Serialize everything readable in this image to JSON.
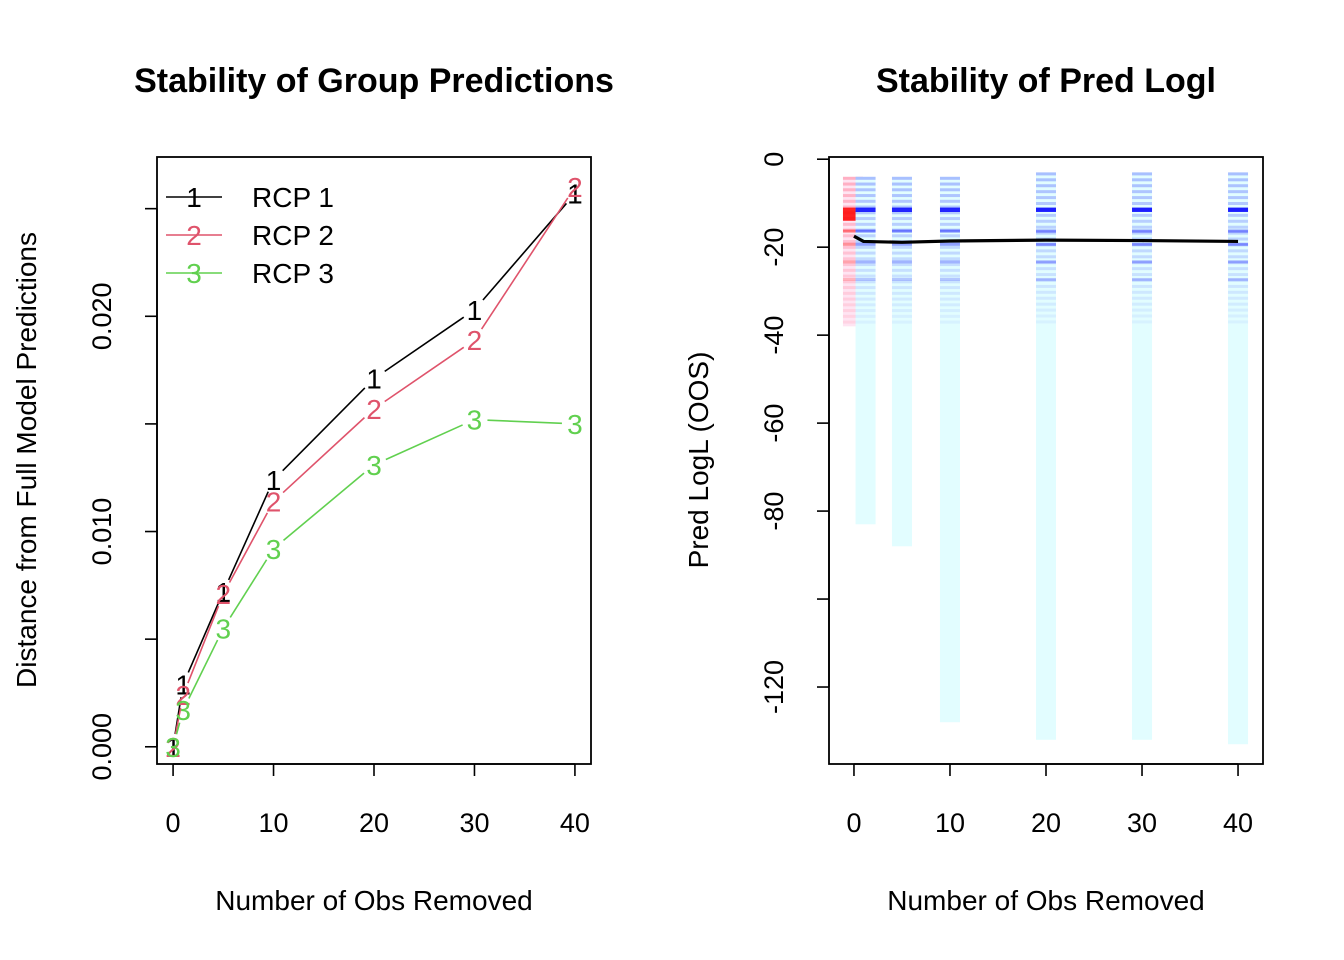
{
  "chart_data": [
    {
      "type": "line",
      "title": "Stability of Group Predictions",
      "xlabel": "Number of Obs Removed",
      "ylabel": "Distance from Full Model Predictions",
      "xlim": [
        -1.6,
        41.6
      ],
      "ylim": [
        -0.0008,
        0.0274
      ],
      "x_ticks": [
        "0",
        "10",
        "20",
        "30",
        "40"
      ],
      "y_ticks": [
        "0.000",
        "0.010",
        "0.020"
      ],
      "x": [
        0,
        1,
        5,
        10,
        20,
        30,
        40
      ],
      "legend": {
        "position": "top-left"
      },
      "series": [
        {
          "name": "RCP 1",
          "marker": "1",
          "color": "#000000",
          "values": [
            0,
            0.0029,
            0.0072,
            0.0124,
            0.0171,
            0.0203,
            0.0257
          ]
        },
        {
          "name": "RCP 2",
          "marker": "2",
          "color": "#df536b",
          "values": [
            0,
            0.0024,
            0.0071,
            0.0114,
            0.0157,
            0.0189,
            0.026
          ]
        },
        {
          "name": "RCP 3",
          "marker": "3",
          "color": "#61d04f",
          "values": [
            0,
            0.0017,
            0.0055,
            0.0092,
            0.0131,
            0.0152,
            0.015
          ]
        }
      ],
      "grid": false
    },
    {
      "type": "line",
      "title": "Stability of Pred Logl",
      "xlabel": "Number of Obs Removed",
      "ylabel": "Pred LogL (OOS)",
      "xlim": [
        -2.6,
        42.6
      ],
      "ylim": [
        -137.5,
        0.5
      ],
      "x_ticks": [
        "0",
        "10",
        "20",
        "30",
        "40"
      ],
      "y_ticks": [
        "0",
        "-20",
        "-40",
        "-60",
        "-80",
        "-120"
      ],
      "y_tick_values": [
        0,
        -20,
        -40,
        -60,
        -80,
        -100,
        -120
      ],
      "density_strips": [
        {
          "x": 0,
          "color": "#ff0000",
          "top": -4,
          "bottom": -38,
          "dense_top": -11,
          "dense_bottom": -14
        },
        {
          "x": 1,
          "color": "#0000ff",
          "top": -4,
          "bottom": -83,
          "dense_top": -11,
          "dense_bottom": -12
        },
        {
          "x": 5,
          "color": "#0000ff",
          "top": -4,
          "bottom": -88,
          "dense_top": -11,
          "dense_bottom": -12
        },
        {
          "x": 10,
          "color": "#0000ff",
          "top": -4,
          "bottom": -128,
          "dense_top": -11,
          "dense_bottom": -12
        },
        {
          "x": 20,
          "color": "#0000ff",
          "top": -3,
          "bottom": -132,
          "dense_top": -11,
          "dense_bottom": -12
        },
        {
          "x": 30,
          "color": "#0000ff",
          "top": -3,
          "bottom": -132,
          "dense_top": -11,
          "dense_bottom": -12
        },
        {
          "x": 40,
          "color": "#0000ff",
          "top": -3,
          "bottom": -133,
          "dense_top": -11,
          "dense_bottom": -12
        }
      ],
      "mean_line": {
        "color": "#000000",
        "x": [
          0,
          1,
          5,
          10,
          20,
          30,
          40
        ],
        "values": [
          -17.5,
          -18.7,
          -18.9,
          -18.6,
          -18.4,
          -18.5,
          -18.7
        ]
      },
      "grid": false
    }
  ]
}
